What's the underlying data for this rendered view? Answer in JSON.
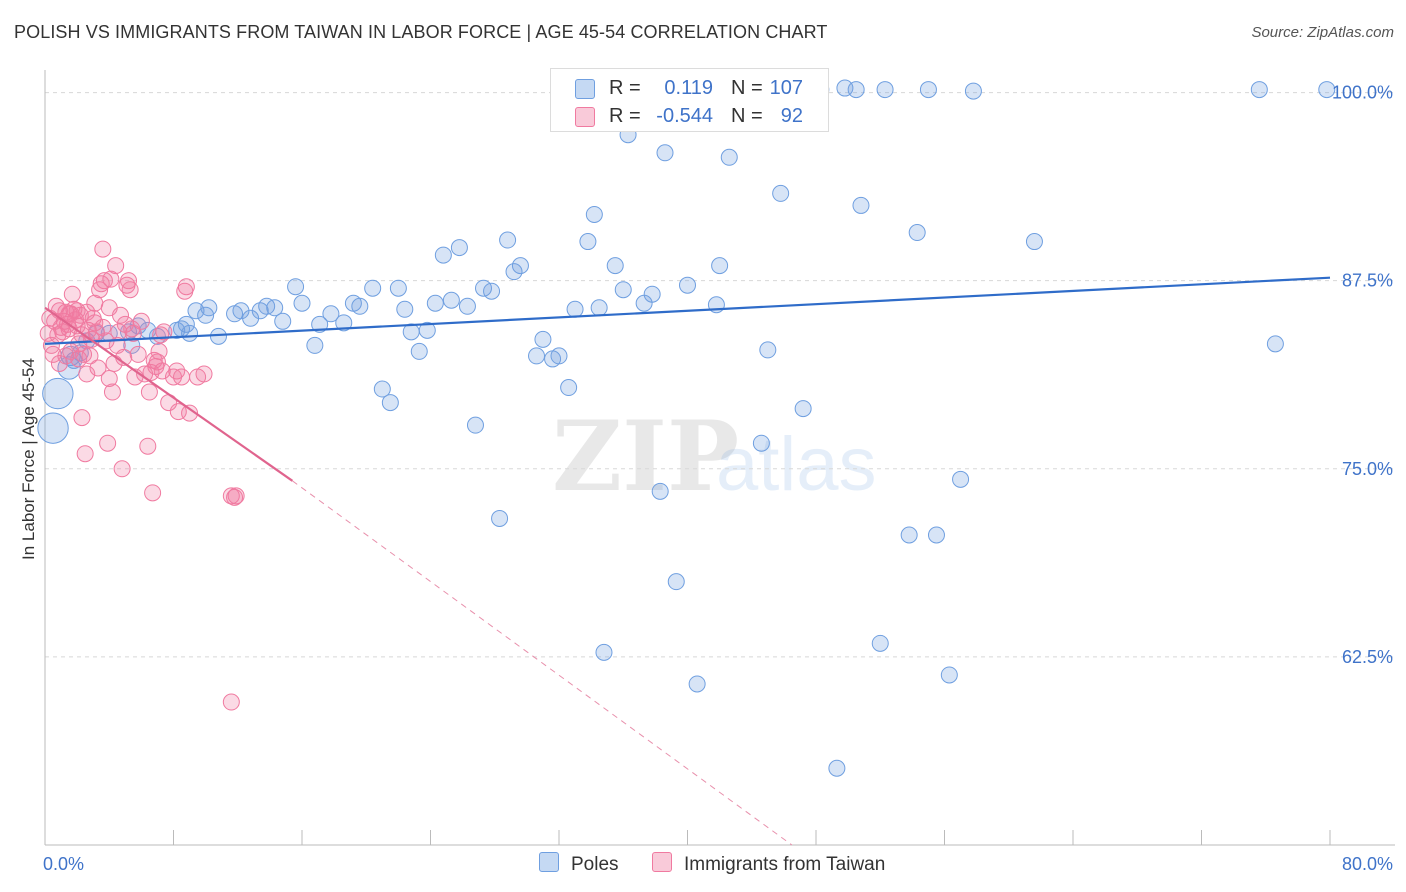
{
  "title": "POLISH VS IMMIGRANTS FROM TAIWAN IN LABOR FORCE | AGE 45-54 CORRELATION CHART",
  "source": "Source: ZipAtlas.com",
  "watermark": {
    "zip": "ZIP",
    "atlas": "atlas"
  },
  "legend_top": [
    {
      "r_label": "R =",
      "r_value": "0.119",
      "n_label": "N =",
      "n_value": "107",
      "color": "#6f9fe0"
    },
    {
      "r_label": "R =",
      "r_value": "-0.544",
      "n_label": "N =",
      "n_value": "92",
      "color": "#f07aa0"
    }
  ],
  "legend_bottom": [
    {
      "label": "Poles",
      "color": "#6f9fe0"
    },
    {
      "label": "Immigrants from Taiwan",
      "color": "#f07aa0"
    }
  ],
  "chart_data": {
    "type": "scatter",
    "title": "POLISH VS IMMIGRANTS FROM TAIWAN IN LABOR FORCE | AGE 45-54 CORRELATION CHART",
    "xlabel": "",
    "ylabel": "In Labor Force | Age 45-54",
    "xlim": [
      0,
      80
    ],
    "ylim": [
      50,
      101.5
    ],
    "x_tick_labels": [
      "0.0%",
      "80.0%"
    ],
    "y_ticks": [
      62.5,
      75.0,
      87.5,
      100.0
    ],
    "y_tick_labels": [
      "62.5%",
      "75.0%",
      "87.5%",
      "100.0%"
    ],
    "grid": true,
    "series": [
      {
        "name": "Poles",
        "color": "#6f9fe0",
        "trend": {
          "x": [
            0,
            80
          ],
          "y": [
            83.3,
            87.7
          ],
          "style": "solid"
        },
        "points": [
          [
            0.5,
            77.7,
            1.9
          ],
          [
            0.8,
            80.0,
            1.9
          ],
          [
            1.5,
            81.7,
            1.4
          ],
          [
            1.6,
            82.5,
            1.2
          ],
          [
            1.8,
            82.2,
            1.0
          ],
          [
            2.2,
            82.7,
            1.0
          ],
          [
            2.6,
            83.5,
            1.0
          ],
          [
            3.2,
            84.0,
            1.0
          ],
          [
            4.0,
            84.0,
            1.0
          ],
          [
            5.2,
            84.1,
            1.0
          ],
          [
            5.4,
            83.2,
            1.0
          ],
          [
            5.8,
            84.5,
            1.0
          ],
          [
            6.4,
            84.2,
            1.0
          ],
          [
            7.0,
            83.8,
            1.0
          ],
          [
            8.2,
            84.2,
            1.0
          ],
          [
            8.5,
            84.3,
            1.0
          ],
          [
            8.8,
            84.6,
            1.0
          ],
          [
            9.0,
            84.0,
            1.0
          ],
          [
            9.4,
            85.5,
            1.0
          ],
          [
            10.0,
            85.2,
            1.0
          ],
          [
            10.2,
            85.7,
            1.0
          ],
          [
            10.8,
            83.8,
            1.0
          ],
          [
            11.8,
            85.3,
            1.0
          ],
          [
            12.2,
            85.5,
            1.0
          ],
          [
            12.8,
            85.0,
            1.0
          ],
          [
            13.4,
            85.5,
            1.0
          ],
          [
            13.8,
            85.8,
            1.0
          ],
          [
            14.3,
            85.7,
            1.0
          ],
          [
            14.8,
            84.8,
            1.0
          ],
          [
            15.6,
            87.1,
            1.0
          ],
          [
            16.0,
            86.0,
            1.0
          ],
          [
            16.8,
            83.2,
            1.0
          ],
          [
            17.1,
            84.6,
            1.0
          ],
          [
            17.8,
            85.3,
            1.0
          ],
          [
            18.6,
            84.7,
            1.0
          ],
          [
            19.2,
            86.0,
            1.0
          ],
          [
            19.6,
            85.8,
            1.0
          ],
          [
            20.4,
            87.0,
            1.0
          ],
          [
            21.0,
            80.3,
            1.0
          ],
          [
            21.5,
            79.4,
            1.0
          ],
          [
            22.0,
            87.0,
            1.0
          ],
          [
            22.4,
            85.6,
            1.0
          ],
          [
            22.8,
            84.1,
            1.0
          ],
          [
            23.3,
            82.8,
            1.0
          ],
          [
            23.8,
            84.2,
            1.0
          ],
          [
            24.3,
            86.0,
            1.0
          ],
          [
            24.8,
            89.2,
            1.0
          ],
          [
            25.3,
            86.2,
            1.0
          ],
          [
            25.8,
            89.7,
            1.0
          ],
          [
            26.3,
            85.8,
            1.0
          ],
          [
            26.8,
            77.9,
            1.0
          ],
          [
            27.3,
            87.0,
            1.0
          ],
          [
            27.8,
            86.8,
            1.0
          ],
          [
            28.3,
            71.7,
            1.0
          ],
          [
            28.8,
            90.2,
            1.0
          ],
          [
            29.2,
            88.1,
            1.0
          ],
          [
            29.6,
            88.5,
            1.0
          ],
          [
            30.6,
            82.5,
            1.0
          ],
          [
            31.0,
            83.6,
            1.0
          ],
          [
            31.6,
            82.3,
            1.0
          ],
          [
            32.0,
            82.5,
            1.0
          ],
          [
            32.6,
            80.4,
            1.0
          ],
          [
            33.0,
            85.6,
            1.0
          ],
          [
            33.8,
            90.1,
            1.0
          ],
          [
            34.2,
            91.9,
            1.0
          ],
          [
            34.5,
            85.7,
            1.0
          ],
          [
            34.8,
            62.8,
            1.0
          ],
          [
            35.5,
            88.5,
            1.0
          ],
          [
            36.0,
            86.9,
            1.0
          ],
          [
            36.3,
            97.2,
            1.0
          ],
          [
            37.3,
            86.0,
            1.0
          ],
          [
            37.8,
            86.6,
            1.0
          ],
          [
            38.3,
            73.5,
            1.0
          ],
          [
            38.6,
            96.0,
            1.0
          ],
          [
            39.3,
            67.5,
            1.0
          ],
          [
            40.0,
            87.2,
            1.0
          ],
          [
            40.6,
            60.7,
            1.0
          ],
          [
            41.3,
            98.9,
            1.0
          ],
          [
            41.8,
            85.9,
            1.0
          ],
          [
            42.0,
            88.5,
            1.0
          ],
          [
            42.6,
            95.7,
            1.0
          ],
          [
            44.6,
            76.7,
            1.0
          ],
          [
            45.0,
            82.9,
            1.0
          ],
          [
            45.8,
            93.3,
            1.0
          ],
          [
            47.2,
            79.0,
            1.0
          ],
          [
            48.3,
            100.2,
            1.0
          ],
          [
            49.3,
            55.1,
            1.0
          ],
          [
            49.8,
            100.3,
            1.0
          ],
          [
            50.5,
            100.2,
            1.0
          ],
          [
            50.8,
            92.5,
            1.0
          ],
          [
            52.0,
            63.4,
            1.0
          ],
          [
            52.3,
            100.2,
            1.0
          ],
          [
            53.8,
            70.6,
            1.0
          ],
          [
            54.3,
            90.7,
            1.0
          ],
          [
            55.0,
            100.2,
            1.0
          ],
          [
            55.5,
            70.6,
            1.0
          ],
          [
            56.3,
            61.3,
            1.0
          ],
          [
            57.0,
            74.3,
            1.0
          ],
          [
            57.8,
            100.1,
            1.0
          ],
          [
            61.6,
            90.1,
            1.0
          ],
          [
            75.6,
            100.2,
            1.0
          ],
          [
            76.6,
            83.3,
            1.0
          ],
          [
            79.8,
            100.2,
            1.0
          ]
        ]
      },
      {
        "name": "Immigrants from Taiwan",
        "color": "#f07aa0",
        "trend": {
          "x": [
            0,
            15.4
          ],
          "y": [
            85.7,
            74.2
          ],
          "style": "solid",
          "extended_to": {
            "x": 46.5,
            "y": 50.0
          }
        },
        "points": [
          [
            0.2,
            84.0,
            1.0
          ],
          [
            0.3,
            85.0,
            1.0
          ],
          [
            0.4,
            83.2,
            1.0
          ],
          [
            0.5,
            82.6,
            1.0
          ],
          [
            0.6,
            84.8,
            1.0
          ],
          [
            0.7,
            85.8,
            1.0
          ],
          [
            0.8,
            83.9,
            1.0
          ],
          [
            0.9,
            85.5,
            1.0
          ],
          [
            1.0,
            84.4,
            1.0
          ],
          [
            1.1,
            84.1,
            1.0
          ],
          [
            1.2,
            84.8,
            1.0
          ],
          [
            1.3,
            85.4,
            1.0
          ],
          [
            1.4,
            84.6,
            1.0
          ],
          [
            1.5,
            84.3,
            1.0
          ],
          [
            1.6,
            85.3,
            1.0
          ],
          [
            1.6,
            82.8,
            1.0
          ],
          [
            1.7,
            86.6,
            1.0
          ],
          [
            1.8,
            85.6,
            1.0
          ],
          [
            1.9,
            84.9,
            1.0
          ],
          [
            2.0,
            84.5,
            1.0
          ],
          [
            2.1,
            82.3,
            1.0
          ],
          [
            2.2,
            85.2,
            1.0
          ],
          [
            2.3,
            83.9,
            1.0
          ],
          [
            2.3,
            78.4,
            1.0
          ],
          [
            2.4,
            82.6,
            1.0
          ],
          [
            2.5,
            76.0,
            1.0
          ],
          [
            2.6,
            81.3,
            1.0
          ],
          [
            2.7,
            84.2,
            1.0
          ],
          [
            2.8,
            82.5,
            1.0
          ],
          [
            2.9,
            83.6,
            1.0
          ],
          [
            3.0,
            85.0,
            1.0
          ],
          [
            3.1,
            86.0,
            1.0
          ],
          [
            3.2,
            84.1,
            1.0
          ],
          [
            3.3,
            81.7,
            1.0
          ],
          [
            3.4,
            86.9,
            1.0
          ],
          [
            3.5,
            87.3,
            1.0
          ],
          [
            3.6,
            89.6,
            1.0
          ],
          [
            3.7,
            87.5,
            1.0
          ],
          [
            3.8,
            83.5,
            1.0
          ],
          [
            3.9,
            76.7,
            1.0
          ],
          [
            4.0,
            85.7,
            1.0
          ],
          [
            4.1,
            87.6,
            1.0
          ],
          [
            4.2,
            80.1,
            1.0
          ],
          [
            4.3,
            82.0,
            1.0
          ],
          [
            4.4,
            88.5,
            1.0
          ],
          [
            4.5,
            83.2,
            1.0
          ],
          [
            4.6,
            84.1,
            1.0
          ],
          [
            4.7,
            85.2,
            1.0
          ],
          [
            4.8,
            75.0,
            1.0
          ],
          [
            4.9,
            82.4,
            1.0
          ],
          [
            5.0,
            84.6,
            1.0
          ],
          [
            5.1,
            87.2,
            1.0
          ],
          [
            5.2,
            87.5,
            1.0
          ],
          [
            5.3,
            86.9,
            1.0
          ],
          [
            5.4,
            84.3,
            1.0
          ],
          [
            5.5,
            84.0,
            1.0
          ],
          [
            5.6,
            81.1,
            1.0
          ],
          [
            5.8,
            82.6,
            1.0
          ],
          [
            6.0,
            84.8,
            1.0
          ],
          [
            6.2,
            81.3,
            1.0
          ],
          [
            6.4,
            76.5,
            1.0
          ],
          [
            6.5,
            80.1,
            1.0
          ],
          [
            6.6,
            81.4,
            1.0
          ],
          [
            6.7,
            73.4,
            1.0
          ],
          [
            6.8,
            82.2,
            1.0
          ],
          [
            6.9,
            81.8,
            1.0
          ],
          [
            7.0,
            82.1,
            1.0
          ],
          [
            7.1,
            82.8,
            1.0
          ],
          [
            7.2,
            83.9,
            1.0
          ],
          [
            7.3,
            81.5,
            1.0
          ],
          [
            7.4,
            84.1,
            1.0
          ],
          [
            7.7,
            79.4,
            1.0
          ],
          [
            8.0,
            81.1,
            1.0
          ],
          [
            8.2,
            81.5,
            1.0
          ],
          [
            8.3,
            78.8,
            1.0
          ],
          [
            8.5,
            81.1,
            1.0
          ],
          [
            8.7,
            86.8,
            1.0
          ],
          [
            8.8,
            87.1,
            1.0
          ],
          [
            9.0,
            78.7,
            1.0
          ],
          [
            9.5,
            81.1,
            1.0
          ],
          [
            9.9,
            81.3,
            1.0
          ],
          [
            11.6,
            73.2,
            1.0
          ],
          [
            11.8,
            73.1,
            1.0
          ],
          [
            11.9,
            73.2,
            1.0
          ],
          [
            11.6,
            59.5,
            1.0
          ],
          [
            1.5,
            85.3,
            1.0
          ],
          [
            2.0,
            85.5,
            1.0
          ],
          [
            2.6,
            85.4,
            1.0
          ],
          [
            3.1,
            84.7,
            1.0
          ],
          [
            3.6,
            84.4,
            1.0
          ],
          [
            0.9,
            82.0,
            1.0
          ],
          [
            1.3,
            82.5,
            1.0
          ],
          [
            2.1,
            83.3,
            1.0
          ],
          [
            4.0,
            81.0,
            1.0
          ]
        ]
      }
    ]
  }
}
